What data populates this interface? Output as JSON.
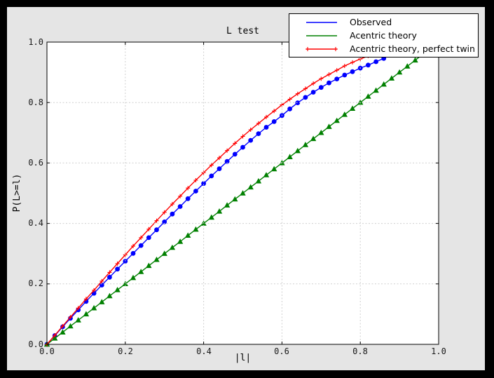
{
  "colors": {
    "observed": "#0000ff",
    "acentric_theory": "#008000",
    "perfect_twin": "#ff0000",
    "figure_background": "#e5e5e5",
    "plot_background": "#ffffff",
    "grid": "#cfcfcf",
    "frame": "#000000"
  },
  "legend": {
    "items": [
      {
        "label": "Observed",
        "color": "#0000ff",
        "marker": "none"
      },
      {
        "label": "Acentric theory",
        "color": "#008000",
        "marker": "none"
      },
      {
        "label": "Acentric theory, perfect twin",
        "color": "#ff0000",
        "marker": "plus"
      }
    ]
  },
  "chart_data": {
    "type": "line",
    "title": "L test",
    "xlabel": "|l|",
    "ylabel": "P(L>=l)",
    "xlim": [
      0.0,
      1.0
    ],
    "ylim": [
      0.0,
      1.0
    ],
    "grid": "dashed, on top of data",
    "legend_position": "upper right, overlapping top of axes",
    "x_tick_labels": [
      "0.0",
      "0.2",
      "0.4",
      "0.6",
      "0.8",
      "1.0"
    ],
    "y_tick_labels": [
      "0.0",
      "0.2",
      "0.4",
      "0.6",
      "0.8",
      "1.0"
    ],
    "tick_values": [
      0,
      0.2,
      0.4,
      0.6,
      0.8,
      1.0
    ],
    "series": [
      {
        "name": "Observed",
        "color": "#0000ff",
        "marker": "circle",
        "x": [
          0,
          0.02,
          0.04,
          0.06,
          0.08,
          0.1,
          0.12,
          0.14,
          0.16,
          0.18,
          0.2,
          0.22,
          0.24,
          0.26,
          0.28,
          0.3,
          0.32,
          0.34,
          0.36,
          0.38,
          0.4,
          0.42,
          0.44,
          0.46,
          0.48,
          0.5,
          0.52,
          0.54,
          0.56,
          0.58,
          0.6,
          0.62,
          0.64,
          0.66,
          0.68,
          0.7,
          0.72,
          0.74,
          0.76,
          0.78,
          0.8,
          0.82,
          0.84,
          0.86
        ],
        "y": [
          0,
          0.029,
          0.058,
          0.086,
          0.114,
          0.142,
          0.169,
          0.196,
          0.222,
          0.249,
          0.275,
          0.301,
          0.327,
          0.353,
          0.379,
          0.405,
          0.431,
          0.456,
          0.482,
          0.507,
          0.532,
          0.557,
          0.581,
          0.605,
          0.629,
          0.652,
          0.675,
          0.697,
          0.718,
          0.737,
          0.757,
          0.779,
          0.799,
          0.817,
          0.834,
          0.85,
          0.865,
          0.878,
          0.891,
          0.902,
          0.914,
          0.924,
          0.935,
          0.946
        ]
      },
      {
        "name": "Acentric theory",
        "color": "#008000",
        "marker": "triangle",
        "x": [
          0,
          0.02,
          0.04,
          0.06,
          0.08,
          0.1,
          0.12,
          0.14,
          0.16,
          0.18,
          0.2,
          0.22,
          0.24,
          0.26,
          0.28,
          0.3,
          0.32,
          0.34,
          0.36,
          0.38,
          0.4,
          0.42,
          0.44,
          0.46,
          0.48,
          0.5,
          0.52,
          0.54,
          0.56,
          0.58,
          0.6,
          0.62,
          0.64,
          0.66,
          0.68,
          0.7,
          0.72,
          0.74,
          0.76,
          0.78,
          0.8,
          0.82,
          0.84,
          0.86,
          0.88,
          0.9,
          0.92,
          0.94,
          0.96
        ],
        "y": [
          0,
          0.02,
          0.04,
          0.06,
          0.08,
          0.1,
          0.12,
          0.14,
          0.16,
          0.18,
          0.2,
          0.22,
          0.24,
          0.26,
          0.28,
          0.3,
          0.32,
          0.34,
          0.36,
          0.38,
          0.4,
          0.42,
          0.44,
          0.46,
          0.48,
          0.5,
          0.52,
          0.54,
          0.56,
          0.58,
          0.6,
          0.62,
          0.64,
          0.66,
          0.68,
          0.7,
          0.72,
          0.74,
          0.76,
          0.78,
          0.8,
          0.82,
          0.84,
          0.86,
          0.88,
          0.9,
          0.92,
          0.94,
          0.96
        ]
      },
      {
        "name": "Acentric theory, perfect twin",
        "color": "#ff0000",
        "marker": "plus",
        "x": [
          0,
          0.02,
          0.04,
          0.06,
          0.08,
          0.1,
          0.12,
          0.14,
          0.16,
          0.18,
          0.2,
          0.22,
          0.24,
          0.26,
          0.28,
          0.3,
          0.32,
          0.34,
          0.36,
          0.38,
          0.4,
          0.42,
          0.44,
          0.46,
          0.48,
          0.5,
          0.52,
          0.54,
          0.56,
          0.58,
          0.6,
          0.62,
          0.64,
          0.66,
          0.68,
          0.7,
          0.72,
          0.74,
          0.76,
          0.78,
          0.8,
          0.82,
          0.84
        ],
        "y": [
          0,
          0.03,
          0.06,
          0.09,
          0.12,
          0.15,
          0.179,
          0.209,
          0.238,
          0.267,
          0.296,
          0.325,
          0.353,
          0.381,
          0.409,
          0.437,
          0.464,
          0.49,
          0.517,
          0.543,
          0.568,
          0.593,
          0.617,
          0.641,
          0.665,
          0.688,
          0.71,
          0.731,
          0.752,
          0.772,
          0.792,
          0.811,
          0.829,
          0.846,
          0.863,
          0.879,
          0.893,
          0.907,
          0.921,
          0.933,
          0.944,
          0.954,
          0.964
        ]
      }
    ]
  }
}
